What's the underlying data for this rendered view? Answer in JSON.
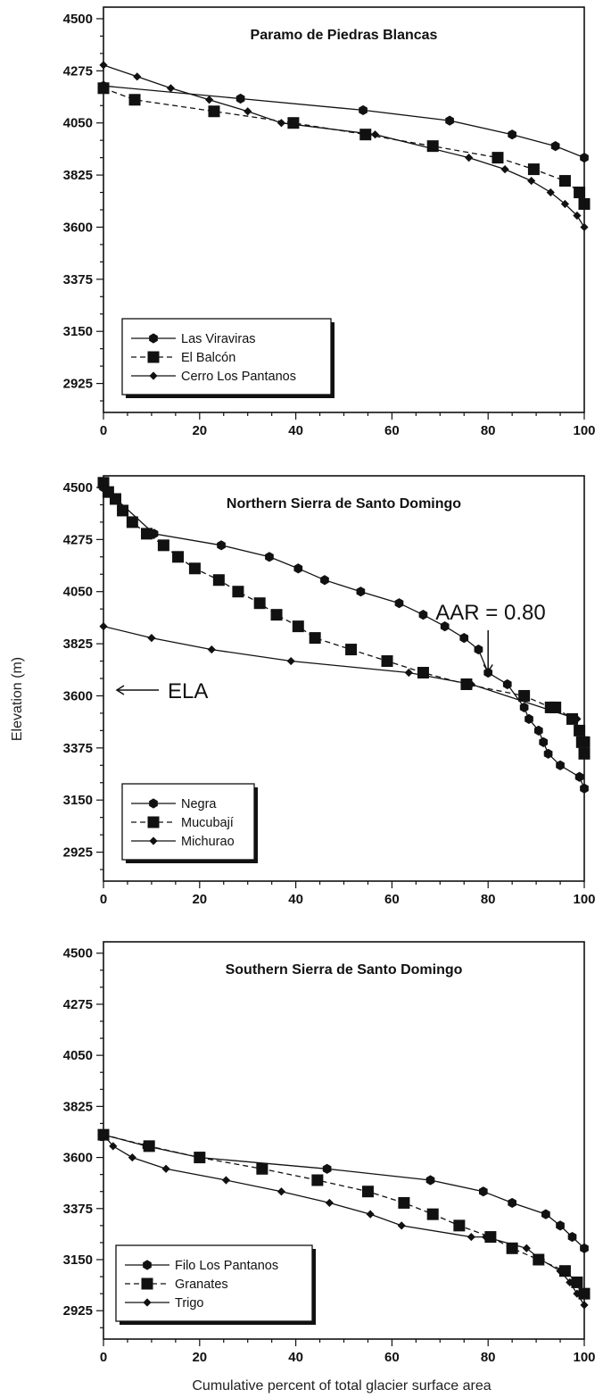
{
  "figure": {
    "ylabel": "Elevation (m)",
    "xlabel": "Cumulative percent of total glacier surface area"
  },
  "chart_data": [
    {
      "type": "line",
      "title": "Paramo de Piedras Blancas",
      "xlabel": "",
      "ylabel": "",
      "xlim": [
        0,
        100
      ],
      "ylim": [
        2800,
        4550
      ],
      "xticks": [
        0,
        20,
        40,
        60,
        80,
        100
      ],
      "yticks": [
        2925,
        3150,
        3375,
        3600,
        3825,
        4050,
        4275,
        4500
      ],
      "legend": "bottom-left",
      "series": [
        {
          "name": "Las Viraviras",
          "marker": "hexagon",
          "dash": "solid",
          "x": [
            0,
            28.5,
            54,
            72,
            85,
            94,
            100
          ],
          "y": [
            4210,
            4155,
            4105,
            4060,
            4000,
            3950,
            3900
          ]
        },
        {
          "name": "El Balcón",
          "marker": "square",
          "dash": "dashed",
          "x": [
            0,
            6.5,
            23,
            39.5,
            54.5,
            68.5,
            82,
            89.5,
            96,
            99,
            100
          ],
          "y": [
            4200,
            4150,
            4100,
            4050,
            4000,
            3950,
            3900,
            3850,
            3800,
            3750,
            3700
          ]
        },
        {
          "name": "Cerro Los Pantanos",
          "marker": "diamond",
          "dash": "solid",
          "x": [
            0,
            7,
            14,
            22,
            30,
            37,
            56.5,
            76,
            83.5,
            89,
            93,
            96,
            98.5,
            100
          ],
          "y": [
            4300,
            4250,
            4200,
            4150,
            4100,
            4050,
            4000,
            3900,
            3850,
            3800,
            3750,
            3700,
            3650,
            3600
          ]
        }
      ]
    },
    {
      "type": "line",
      "title": "Northern Sierra de Santo Domingo",
      "xlabel": "",
      "ylabel": "",
      "xlim": [
        0,
        100
      ],
      "ylim": [
        2800,
        4550
      ],
      "xticks": [
        0,
        20,
        40,
        60,
        80,
        100
      ],
      "yticks": [
        2925,
        3150,
        3375,
        3600,
        3825,
        4050,
        4275,
        4500
      ],
      "legend": "bottom-left",
      "annotations": [
        {
          "text": "AAR = 0.80",
          "x": 80,
          "y": 3650
        },
        {
          "text": "ELA",
          "x": 0,
          "y": 3625
        }
      ],
      "series": [
        {
          "name": "Negra",
          "marker": "hexagon",
          "dash": "solid",
          "x": [
            0,
            10.5,
            24.5,
            34.5,
            40.5,
            46,
            53.5,
            61.5,
            66.5,
            71,
            75,
            78,
            80,
            84,
            87.5,
            88.5,
            90.5,
            91.5,
            92.5,
            95,
            99,
            100
          ],
          "y": [
            4500,
            4300,
            4250,
            4200,
            4150,
            4100,
            4050,
            4000,
            3950,
            3900,
            3850,
            3800,
            3700,
            3650,
            3550,
            3500,
            3450,
            3400,
            3350,
            3300,
            3250,
            3200
          ]
        },
        {
          "name": "Mucubají",
          "marker": "square",
          "dash": "dashed",
          "x": [
            0,
            1,
            2.5,
            4,
            6,
            9,
            12.5,
            15.5,
            19,
            24,
            28,
            32.5,
            36,
            40.5,
            44,
            51.5,
            59,
            66.5,
            75.5,
            87.5,
            93,
            94,
            97.5,
            99,
            99.5,
            100,
            100
          ],
          "y": [
            4520,
            4480,
            4450,
            4400,
            4350,
            4300,
            4250,
            4200,
            4150,
            4100,
            4050,
            4000,
            3950,
            3900,
            3850,
            3800,
            3750,
            3700,
            3650,
            3600,
            3550,
            3550,
            3500,
            3450,
            3400,
            3400,
            3350
          ]
        },
        {
          "name": "Michurao",
          "marker": "diamond",
          "dash": "solid",
          "x": [
            0,
            10,
            22.5,
            39,
            63.5,
            76.5,
            98.5
          ],
          "y": [
            3900,
            3850,
            3800,
            3750,
            3700,
            3650,
            3500
          ]
        }
      ]
    },
    {
      "type": "line",
      "title": "Southern Sierra de Santo Domingo",
      "xlabel": "",
      "ylabel": "",
      "xlim": [
        0,
        100
      ],
      "ylim": [
        2800,
        4550
      ],
      "xticks": [
        0,
        20,
        40,
        60,
        80,
        100
      ],
      "yticks": [
        2925,
        3150,
        3375,
        3600,
        3825,
        4050,
        4275,
        4500
      ],
      "legend": "bottom-left",
      "series": [
        {
          "name": "Filo Los Pantanos",
          "marker": "hexagon",
          "dash": "solid",
          "x": [
            0,
            9,
            20,
            46.5,
            68,
            79,
            85,
            92,
            95,
            97.5,
            100
          ],
          "y": [
            3700,
            3650,
            3600,
            3550,
            3500,
            3450,
            3400,
            3350,
            3300,
            3250,
            3200
          ]
        },
        {
          "name": "Granates",
          "marker": "square",
          "dash": "dashed",
          "x": [
            0,
            9.5,
            20,
            33,
            44.5,
            55,
            62.5,
            68.5,
            74,
            80.5,
            85,
            90.5,
            96,
            98.5,
            100
          ],
          "y": [
            3700,
            3650,
            3600,
            3550,
            3500,
            3450,
            3400,
            3350,
            3300,
            3250,
            3200,
            3150,
            3100,
            3050,
            3000
          ]
        },
        {
          "name": "Trigo",
          "marker": "diamond",
          "dash": "solid",
          "x": [
            0,
            2,
            6,
            13,
            25.5,
            37,
            47,
            55.5,
            62,
            76.5,
            79.5,
            88,
            91,
            95,
            97,
            98.5,
            100
          ],
          "y": [
            3700,
            3650,
            3600,
            3550,
            3500,
            3450,
            3400,
            3350,
            3300,
            3250,
            3250,
            3200,
            3150,
            3100,
            3050,
            3000,
            2950
          ]
        }
      ]
    }
  ]
}
